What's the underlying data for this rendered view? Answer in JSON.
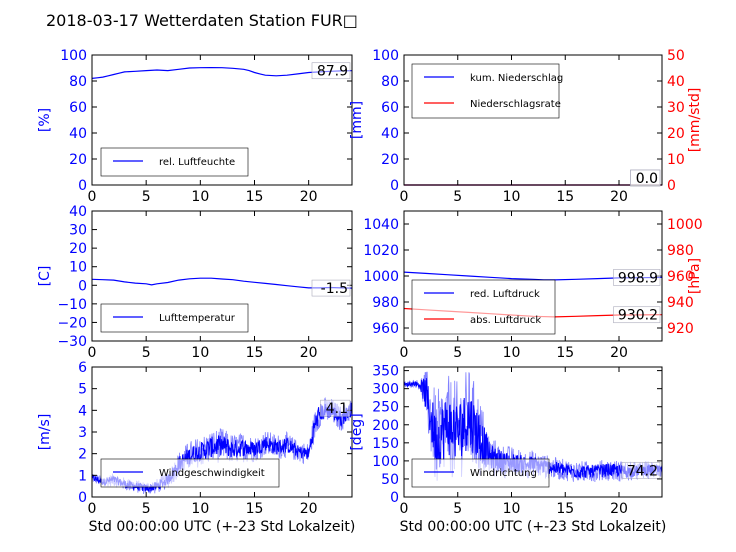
{
  "title": "2018-03-17 Wetterdaten Station FUR□",
  "colors": {
    "primary": "#0000ff",
    "secondary": "#ff0000",
    "light": "#8080ff"
  },
  "chart_data": [
    {
      "type": "line",
      "xlim": [
        0,
        24
      ],
      "xticks": [
        "0",
        "5",
        "10",
        "15",
        "20"
      ],
      "ylim": [
        0,
        100
      ],
      "yticks": [
        "0",
        "20",
        "40",
        "60",
        "80",
        "100"
      ],
      "ylabel": "[%]",
      "legend_placement": "lower-left",
      "last_value_label": "87.9",
      "series": [
        {
          "name": "rel. Luftfeuchte",
          "x": [
            0,
            0.5,
            1,
            1.5,
            2,
            2.5,
            3,
            4,
            5,
            6,
            7,
            8,
            9,
            10,
            11,
            12,
            13,
            14,
            14.5,
            15,
            15.5,
            16,
            17,
            18,
            19,
            20,
            21,
            22,
            23,
            24
          ],
          "values": [
            82,
            82.5,
            83,
            84,
            85,
            86,
            87,
            87.5,
            88,
            88.5,
            88,
            89,
            90,
            90.2,
            90.3,
            90.2,
            89.8,
            89,
            88,
            86.5,
            85.5,
            84.5,
            84,
            84.5,
            85.5,
            86.5,
            87,
            87.5,
            87.8,
            87.9
          ]
        }
      ]
    },
    {
      "type": "line",
      "xlim": [
        0,
        24
      ],
      "xticks": [
        "0",
        "5",
        "10",
        "15",
        "20"
      ],
      "ylim": [
        0,
        100
      ],
      "yticks": [
        "0",
        "20",
        "40",
        "60",
        "80",
        "100"
      ],
      "ylabel": "[mm]",
      "y2lim": [
        0,
        50
      ],
      "y2ticks": [
        "0",
        "10",
        "20",
        "30",
        "40",
        "50"
      ],
      "y2label": "[mm/std]",
      "legend_placement": "upper-left",
      "last_value_label": "0.0",
      "last_value_label_2": "0.0",
      "series": [
        {
          "name": "kum. Niederschlag",
          "x": [
            0,
            24
          ],
          "values": [
            0,
            0
          ]
        },
        {
          "name": "Niederschlagsrate",
          "axis": "right",
          "x": [
            0,
            24
          ],
          "values": [
            0,
            0
          ]
        }
      ]
    },
    {
      "type": "line",
      "xlim": [
        0,
        24
      ],
      "xticks": [
        "0",
        "5",
        "10",
        "15",
        "20"
      ],
      "ylim": [
        -30,
        40
      ],
      "yticks": [
        "−30",
        "−20",
        "−10",
        "0",
        "10",
        "20",
        "30",
        "40"
      ],
      "ylabel": "[C]",
      "legend_placement": "lower-left",
      "last_value_label": "-1.5",
      "series": [
        {
          "name": "Lufttemperatur",
          "x": [
            0,
            1,
            2,
            3,
            4,
            5,
            5.5,
            6,
            7,
            8,
            9,
            10,
            11,
            12,
            13,
            14,
            15,
            16,
            17,
            18,
            19,
            20,
            21,
            22,
            23,
            24
          ],
          "values": [
            3.2,
            3.0,
            2.8,
            1.8,
            1.2,
            0.8,
            0.2,
            0.8,
            1.5,
            2.8,
            3.5,
            3.8,
            3.8,
            3.4,
            3.0,
            2.2,
            1.6,
            1.0,
            0.4,
            -0.2,
            -0.8,
            -1.4,
            -1.4,
            -1.2,
            -1.4,
            -1.5
          ]
        }
      ]
    },
    {
      "type": "line",
      "xlim": [
        0,
        24
      ],
      "xticks": [
        "0",
        "5",
        "10",
        "15",
        "20"
      ],
      "ylim": [
        950,
        1050
      ],
      "yticks": [
        "960",
        "980",
        "1000",
        "1020",
        "1040"
      ],
      "ylabel": "",
      "y2lim": [
        910,
        1010
      ],
      "y2ticks": [
        "920",
        "940",
        "960",
        "980",
        "1000"
      ],
      "y2label": "[hPa]",
      "legend_placement": "lower-left",
      "last_value_label": "998.9",
      "last_value_label_2": "930.2",
      "series": [
        {
          "name": "red. Luftdruck",
          "x": [
            0,
            2,
            4,
            6,
            8,
            10,
            12,
            13,
            14,
            16,
            18,
            20,
            22,
            24
          ],
          "values": [
            1003,
            1002,
            1001,
            1000,
            999,
            998,
            997.5,
            997,
            997,
            997.5,
            998,
            998.5,
            998.7,
            998.9
          ]
        },
        {
          "name": "abs. Luftdruck",
          "axis": "right",
          "x": [
            0,
            2,
            4,
            6,
            8,
            10,
            12,
            14,
            16,
            18,
            20,
            22,
            24
          ],
          "values": [
            935,
            934,
            933,
            932,
            931,
            930,
            929,
            928.5,
            929,
            929.5,
            930,
            930.1,
            930.2
          ]
        }
      ]
    },
    {
      "type": "line",
      "xlim": [
        0,
        24
      ],
      "xticks": [
        "0",
        "5",
        "10",
        "15",
        "20"
      ],
      "ylim": [
        0,
        6
      ],
      "yticks": [
        "0",
        "1",
        "2",
        "3",
        "4",
        "5",
        "6"
      ],
      "ylabel": "[m/s]",
      "xlabel": "Std 00:00:00 UTC (+-23 Std Lokalzeit)",
      "legend_placement": "lower-center",
      "last_value_label": "4.1",
      "series": [
        {
          "name": "Windgeschwindigkeit",
          "x": [
            0,
            1,
            2,
            3,
            4,
            5,
            6,
            7,
            8,
            9,
            10,
            11,
            12,
            13,
            14,
            15,
            16,
            17,
            18,
            19,
            20,
            20.5,
            21,
            22,
            23,
            24
          ],
          "values": [
            0.9,
            0.7,
            0.8,
            0.6,
            0.5,
            0.4,
            0.5,
            0.8,
            1.5,
            1.9,
            2.1,
            2.3,
            2.4,
            2.2,
            2.3,
            2.2,
            2.5,
            2.3,
            2.4,
            2.1,
            2.0,
            3.2,
            3.9,
            4.0,
            3.6,
            4.1
          ],
          "noise": [
            0.25,
            0.25,
            0.3,
            0.3,
            0.3,
            0.3,
            0.35,
            0.4,
            0.6,
            0.7,
            0.7,
            0.8,
            0.8,
            0.7,
            0.7,
            0.6,
            0.6,
            0.6,
            0.6,
            0.5,
            0.5,
            0.7,
            0.7,
            0.6,
            0.6,
            0.5
          ]
        }
      ]
    },
    {
      "type": "line",
      "xlim": [
        0,
        24
      ],
      "xticks": [
        "0",
        "5",
        "10",
        "15",
        "20"
      ],
      "ylim": [
        0,
        360
      ],
      "yticks": [
        "0",
        "50",
        "100",
        "150",
        "200",
        "250",
        "300",
        "350"
      ],
      "ylabel": "[deg]",
      "xlabel": "Std 00:00:00 UTC (+-23 Std Lokalzeit)",
      "legend_placement": "lower-left",
      "last_value_label": "74.2",
      "series": [
        {
          "name": "Windrichtung",
          "x": [
            0,
            1,
            1.5,
            2,
            3,
            4,
            5,
            6,
            7,
            8,
            9,
            10,
            11,
            12,
            13,
            14,
            15,
            16,
            17,
            18,
            19,
            20,
            21,
            22,
            23,
            24
          ],
          "values": [
            310,
            315,
            310,
            290,
            150,
            200,
            180,
            220,
            170,
            110,
            100,
            95,
            92,
            90,
            85,
            80,
            75,
            70,
            70,
            72,
            75,
            72,
            70,
            73,
            75,
            74
          ],
          "noise": [
            10,
            10,
            15,
            80,
            140,
            140,
            140,
            140,
            120,
            60,
            50,
            45,
            40,
            40,
            35,
            30,
            30,
            30,
            30,
            30,
            30,
            30,
            28,
            25,
            25,
            20
          ]
        }
      ]
    }
  ]
}
